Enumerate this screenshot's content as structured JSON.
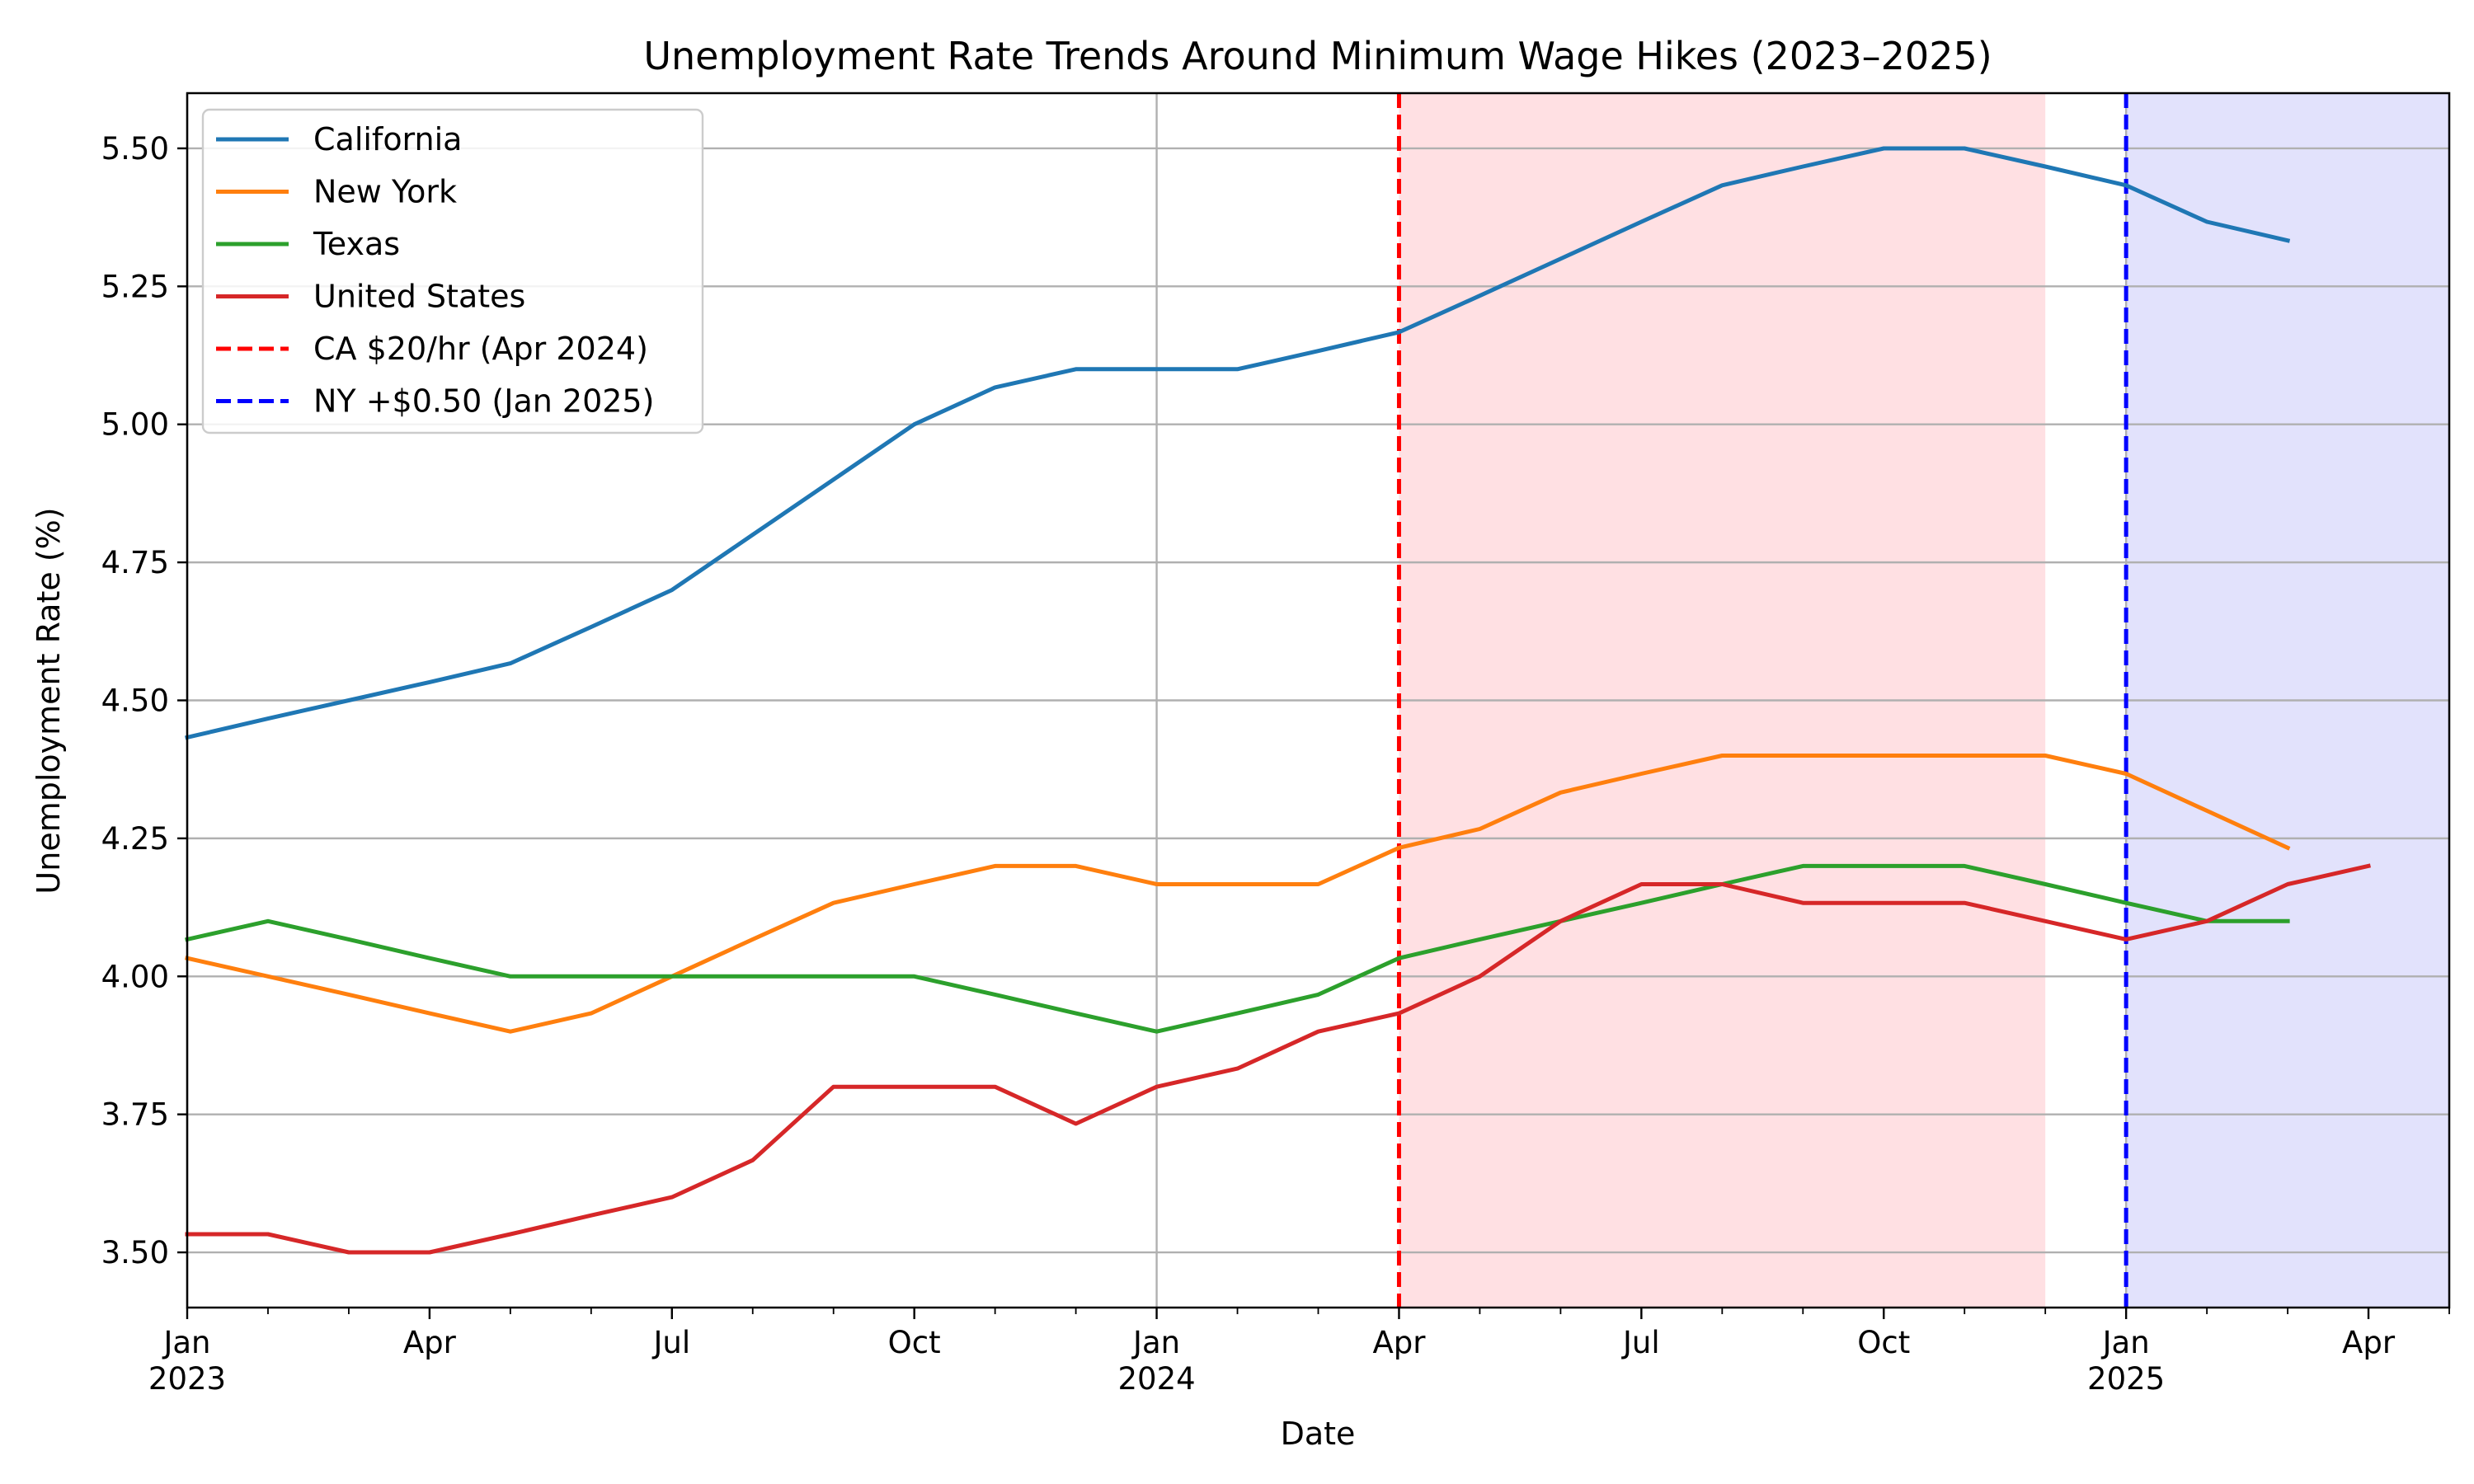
{
  "chart_data": {
    "type": "line",
    "title": "Unemployment Rate Trends Around Minimum Wage Hikes (2023–2025)",
    "xlabel": "Date",
    "ylabel": "Unemployment Rate (%)",
    "xlim": [
      "2023-01",
      "2025-05"
    ],
    "ylim": [
      3.4,
      5.6
    ],
    "yticks": [
      3.5,
      3.75,
      4.0,
      4.25,
      4.5,
      4.75,
      5.0,
      5.25,
      5.5
    ],
    "ytick_labels": [
      "3.50",
      "3.75",
      "4.00",
      "4.25",
      "4.50",
      "4.75",
      "5.00",
      "5.25",
      "5.50"
    ],
    "xticks": [
      {
        "date": "2023-01",
        "label": "Jan",
        "year": "2023"
      },
      {
        "date": "2023-04",
        "label": "Apr",
        "year": ""
      },
      {
        "date": "2023-07",
        "label": "Jul",
        "year": ""
      },
      {
        "date": "2023-10",
        "label": "Oct",
        "year": ""
      },
      {
        "date": "2024-01",
        "label": "Jan",
        "year": "2024"
      },
      {
        "date": "2024-04",
        "label": "Apr",
        "year": ""
      },
      {
        "date": "2024-07",
        "label": "Jul",
        "year": ""
      },
      {
        "date": "2024-10",
        "label": "Oct",
        "year": ""
      },
      {
        "date": "2025-01",
        "label": "Jan",
        "year": "2025"
      },
      {
        "date": "2025-04",
        "label": "Apr",
        "year": ""
      }
    ],
    "grid": true,
    "legend_position": "upper-left",
    "x": [
      "2023-01",
      "2023-02",
      "2023-03",
      "2023-04",
      "2023-05",
      "2023-06",
      "2023-07",
      "2023-08",
      "2023-09",
      "2023-10",
      "2023-11",
      "2023-12",
      "2024-01",
      "2024-02",
      "2024-03",
      "2024-04",
      "2024-05",
      "2024-06",
      "2024-07",
      "2024-08",
      "2024-09",
      "2024-10",
      "2024-11",
      "2024-12",
      "2025-01",
      "2025-02",
      "2025-03",
      "2025-04"
    ],
    "series": [
      {
        "name": "California",
        "color": "#1f77b4",
        "values": [
          4.433,
          4.467,
          4.5,
          4.533,
          4.567,
          4.633,
          4.7,
          4.8,
          4.9,
          5.0,
          5.067,
          5.1,
          5.1,
          5.1,
          5.133,
          5.167,
          5.233,
          5.3,
          5.367,
          5.433,
          5.467,
          5.5,
          5.5,
          5.467,
          5.433,
          5.367,
          5.333,
          null
        ]
      },
      {
        "name": "New York",
        "color": "#ff7f0e",
        "values": [
          4.033,
          4.0,
          3.967,
          3.933,
          3.9,
          3.933,
          4.0,
          4.067,
          4.133,
          4.167,
          4.2,
          4.2,
          4.167,
          4.167,
          4.167,
          4.233,
          4.267,
          4.333,
          4.367,
          4.4,
          4.4,
          4.4,
          4.4,
          4.4,
          4.367,
          4.3,
          4.233,
          null
        ]
      },
      {
        "name": "Texas",
        "color": "#2ca02c",
        "values": [
          4.067,
          4.1,
          4.067,
          4.033,
          4.0,
          4.0,
          4.0,
          4.0,
          4.0,
          4.0,
          3.967,
          3.933,
          3.9,
          3.933,
          3.967,
          4.033,
          4.067,
          4.1,
          4.133,
          4.167,
          4.2,
          4.2,
          4.2,
          4.167,
          4.133,
          4.1,
          4.1,
          null
        ]
      },
      {
        "name": "United States",
        "color": "#d62728",
        "values": [
          3.533,
          3.533,
          3.5,
          3.5,
          3.533,
          3.567,
          3.6,
          3.667,
          3.8,
          3.8,
          3.8,
          3.733,
          3.8,
          3.833,
          3.9,
          3.933,
          4.0,
          4.1,
          4.167,
          4.167,
          4.133,
          4.133,
          4.133,
          4.1,
          4.067,
          4.1,
          4.167,
          4.2
        ]
      }
    ],
    "events": [
      {
        "name": "CA $20/hr (Apr 2024)",
        "date": "2024-04",
        "color": "#ff0000"
      },
      {
        "name": "NY +$0.50 (Jan 2025)",
        "date": "2025-01",
        "color": "#0000ff"
      }
    ],
    "shaded_regions": [
      {
        "start": "2024-04",
        "end": "2024-12",
        "color": "#ffe0e3"
      },
      {
        "start": "2025-01",
        "end": "2025-05",
        "color": "#e2e2fc"
      }
    ]
  }
}
